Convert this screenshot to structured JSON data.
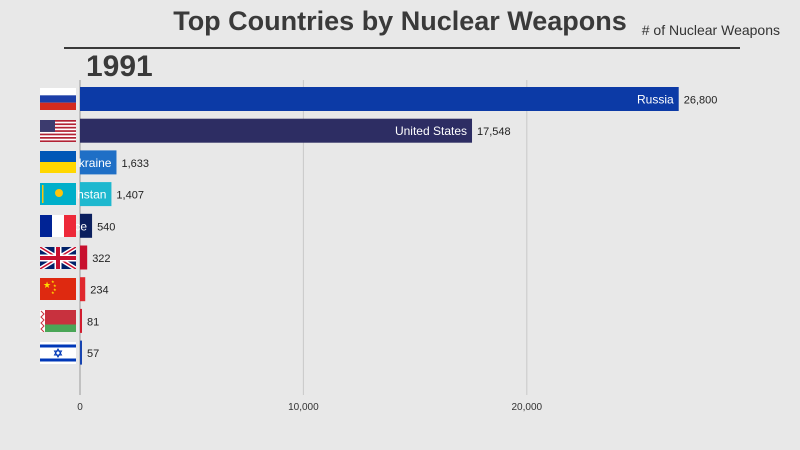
{
  "title": "Top Countries by Nuclear Weapons",
  "subtitle": "# of Nuclear Weapons",
  "year": "1991",
  "chart_data": {
    "type": "bar",
    "orientation": "horizontal",
    "title": "Top Countries by Nuclear Weapons",
    "xlabel": "# of Nuclear Weapons",
    "xlim": [
      0,
      26800
    ],
    "xticks": [
      0,
      10000,
      20000
    ],
    "xtick_labels": [
      "0",
      "10,000",
      "20,000"
    ],
    "grid": true,
    "categories": [
      "Russia",
      "United States",
      "Ukraine",
      "Kazakhstan",
      "France",
      "United Kingdom",
      "China",
      "Belarus",
      "Israel"
    ],
    "values": [
      26800,
      17548,
      1633,
      1407,
      540,
      322,
      234,
      81,
      57
    ],
    "value_labels": [
      "26,800",
      "17,548",
      "1,633",
      "1,407",
      "540",
      "322",
      "234",
      "81",
      "57"
    ],
    "visible_bar_labels": [
      "Russia",
      "United States",
      "kraine",
      "hstan",
      "ce",
      "",
      "",
      "",
      ""
    ],
    "colors": [
      "#0c3aa6",
      "#2d2d63",
      "#1f6fc6",
      "#1eb8cf",
      "#0b1f5e",
      "#c8102e",
      "#e0282e",
      "#d11d2f",
      "#1744b0"
    ],
    "flags": [
      "flag-russia-icon",
      "flag-usa-icon",
      "flag-ukraine-icon",
      "flag-kazakhstan-icon",
      "flag-france-icon",
      "flag-uk-icon",
      "flag-china-icon",
      "flag-belarus-icon",
      "flag-israel-icon"
    ]
  }
}
